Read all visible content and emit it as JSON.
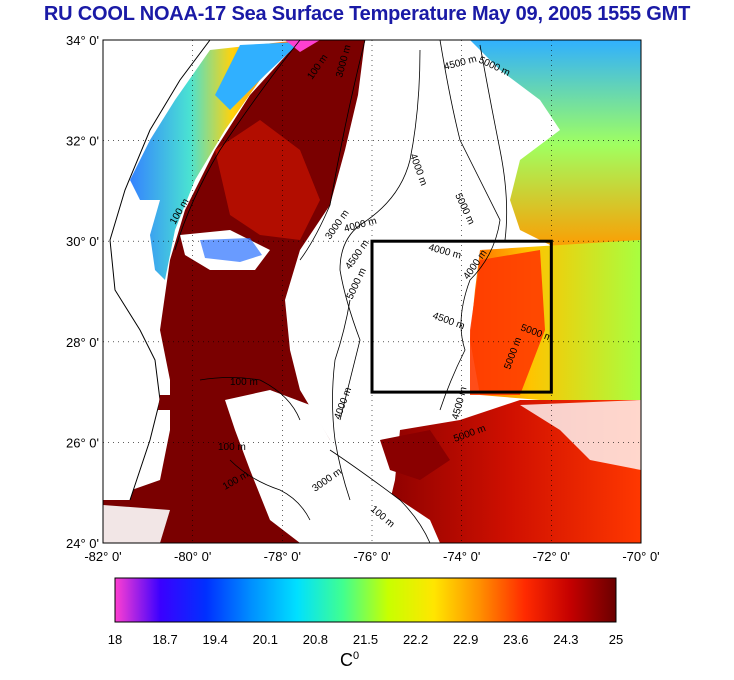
{
  "title": "RU COOL  NOAA-17 Sea Surface Temperature May 09, 2005 1555 GMT",
  "map": {
    "lat_ticks": [
      "34° 0'",
      "32° 0'",
      "30° 0'",
      "28° 0'",
      "26° 0'",
      "24° 0'"
    ],
    "lon_ticks": [
      "-82° 0'",
      "-80° 0'",
      "-78° 0'",
      "-76° 0'",
      "-74° 0'",
      "-72° 0'",
      "-70° 0'"
    ],
    "lat_range": [
      24,
      34
    ],
    "lon_range": [
      -82,
      -70
    ],
    "study_box": {
      "lon": [
        -76,
        -72
      ],
      "lat": [
        27,
        30
      ]
    },
    "contour_labels": [
      "100 m",
      "3000 m",
      "4500 m",
      "5000 m",
      "4000 m",
      "5000 m",
      "100 m",
      "4000 m",
      "3000 m",
      "4000 m",
      "4500 m",
      "5000 m",
      "4000 m",
      "4500 m",
      "5000 m",
      "5000 m",
      "100 m",
      "100 m",
      "4000 m",
      "4500 m",
      "5000 m",
      "100 m",
      "100 m",
      "3000 m"
    ],
    "colors": {
      "land": "#ffffff",
      "cloud": "#ffffff",
      "warm": "#7a0000",
      "box": "#000000"
    }
  },
  "colorbar": {
    "ticks": [
      "18",
      "18.7",
      "19.4",
      "20.1",
      "20.8",
      "21.5",
      "22.2",
      "22.9",
      "23.6",
      "24.3",
      "25"
    ],
    "unit": "C",
    "unit_sup": "0",
    "stops": [
      "#ff3fd0",
      "#3a00ff",
      "#0030ff",
      "#0090ff",
      "#00e0ff",
      "#40ff90",
      "#c8ff00",
      "#ffe600",
      "#ff9000",
      "#ff2a00",
      "#c40000",
      "#6a0000"
    ]
  }
}
